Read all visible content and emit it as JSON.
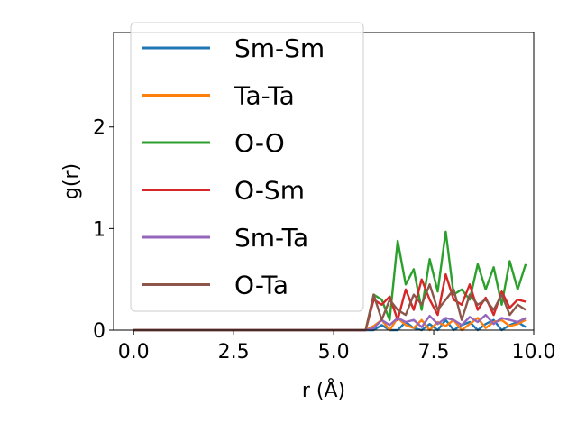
{
  "chart_data": {
    "type": "line",
    "xlabel": "r (Å)",
    "ylabel": "g(r)",
    "xlim": [
      -0.5,
      10.0
    ],
    "ylim": [
      0,
      2.93
    ],
    "xticks": [
      "0.0",
      "2.5",
      "5.0",
      "7.5",
      "10.0"
    ],
    "yticks": [
      "0",
      "1",
      "2"
    ],
    "xtick_values": [
      0,
      2.5,
      5,
      7.5,
      10
    ],
    "ytick_values": [
      0,
      1,
      2
    ],
    "grid": false,
    "legend_position": "upper-left",
    "x": [
      0.0,
      0.2,
      0.4,
      0.6,
      0.8,
      1.0,
      1.2,
      1.4,
      1.6,
      1.8,
      2.0,
      2.2,
      2.4,
      2.6,
      2.8,
      3.0,
      3.2,
      3.4,
      3.6,
      3.8,
      4.0,
      4.2,
      4.4,
      4.6,
      4.8,
      5.0,
      5.2,
      5.4,
      5.6,
      5.8,
      6.0,
      6.2,
      6.4,
      6.6,
      6.8,
      7.0,
      7.2,
      7.4,
      7.6,
      7.8,
      8.0,
      8.2,
      8.4,
      8.6,
      8.8,
      9.0,
      9.2,
      9.4,
      9.6,
      9.8
    ],
    "series": [
      {
        "name": "Sm-Sm",
        "color": "#1f77b4",
        "values": [
          0,
          0,
          0,
          0,
          0,
          0,
          0,
          0,
          0,
          0,
          0,
          0,
          0,
          0,
          0,
          0,
          0,
          0,
          0,
          0,
          0,
          0,
          0,
          0,
          0,
          0,
          0,
          0,
          0,
          0,
          0,
          0.05,
          0,
          0,
          0.08,
          0.02,
          0,
          0.06,
          0,
          0.1,
          0,
          0.05,
          0.08,
          0,
          0.06,
          0.1,
          0,
          0.05,
          0.08,
          0.03
        ]
      },
      {
        "name": "Ta-Ta",
        "color": "#ff7f0e",
        "values": [
          0,
          0,
          0,
          0,
          0,
          0,
          0,
          0,
          0,
          0,
          0,
          0,
          0,
          0,
          0,
          0,
          0,
          0,
          0,
          0,
          0,
          0,
          0,
          0,
          0,
          0,
          0,
          0,
          0,
          0,
          0.04,
          0.1,
          0,
          0.12,
          0.05,
          0.02,
          0.1,
          0,
          0.08,
          0.04,
          0.1,
          0,
          0.06,
          0.12,
          0.02,
          0.08,
          0.1,
          0.04,
          0.06,
          0.1
        ]
      },
      {
        "name": "O-O",
        "color": "#2ca02c",
        "values": [
          0,
          0,
          0,
          0,
          0,
          0,
          0,
          0,
          0,
          0,
          0,
          0,
          0,
          0,
          0,
          0,
          0,
          0,
          0,
          0,
          0,
          0,
          0,
          0,
          0,
          0,
          0,
          0,
          0,
          0,
          0.35,
          0.3,
          0.1,
          0.88,
          0.45,
          0.6,
          0.2,
          0.7,
          0.38,
          0.97,
          0.35,
          0.4,
          0.3,
          0.65,
          0.4,
          0.62,
          0.25,
          0.68,
          0.4,
          0.65
        ]
      },
      {
        "name": "O-Sm",
        "color": "#d62728",
        "values": [
          0,
          0,
          0,
          0,
          0,
          0,
          0,
          0,
          0,
          0,
          0,
          0,
          0,
          0,
          0,
          0,
          0,
          0,
          0,
          0,
          0,
          0,
          0,
          0,
          0,
          0,
          0,
          0,
          0,
          0,
          0.3,
          0.25,
          0.33,
          0.1,
          0.4,
          0.2,
          0.5,
          0.3,
          0.15,
          0.55,
          0.3,
          0.25,
          0.45,
          0.2,
          0.32,
          0.15,
          0.38,
          0.22,
          0.3,
          0.28
        ]
      },
      {
        "name": "Sm-Ta",
        "color": "#9467bd",
        "values": [
          0,
          0,
          0,
          0,
          0,
          0,
          0,
          0,
          0,
          0,
          0,
          0,
          0,
          0,
          0,
          0,
          0,
          0,
          0,
          0,
          0,
          0,
          0,
          0,
          0,
          0,
          0,
          0,
          0,
          0,
          0.02,
          0.1,
          0.05,
          0.12,
          0.08,
          0.1,
          0.03,
          0.14,
          0.06,
          0.12,
          0.1,
          0.05,
          0.13,
          0.08,
          0.15,
          0.06,
          0.12,
          0.1,
          0.08,
          0.12
        ]
      },
      {
        "name": "O-Ta",
        "color": "#8c564b",
        "values": [
          0,
          0,
          0,
          0,
          0,
          0,
          0,
          0,
          0,
          0,
          0,
          0,
          0,
          0,
          0,
          0,
          0,
          0,
          0,
          0,
          0,
          0,
          0,
          0,
          0,
          0,
          0,
          0,
          0,
          0,
          0.35,
          0.1,
          0.3,
          0.2,
          0.15,
          0.35,
          0.25,
          0.45,
          0.2,
          0.3,
          0.4,
          0.1,
          0.35,
          0.25,
          0.3,
          0.2,
          0.35,
          0.15,
          0.25,
          0.2
        ]
      }
    ]
  }
}
